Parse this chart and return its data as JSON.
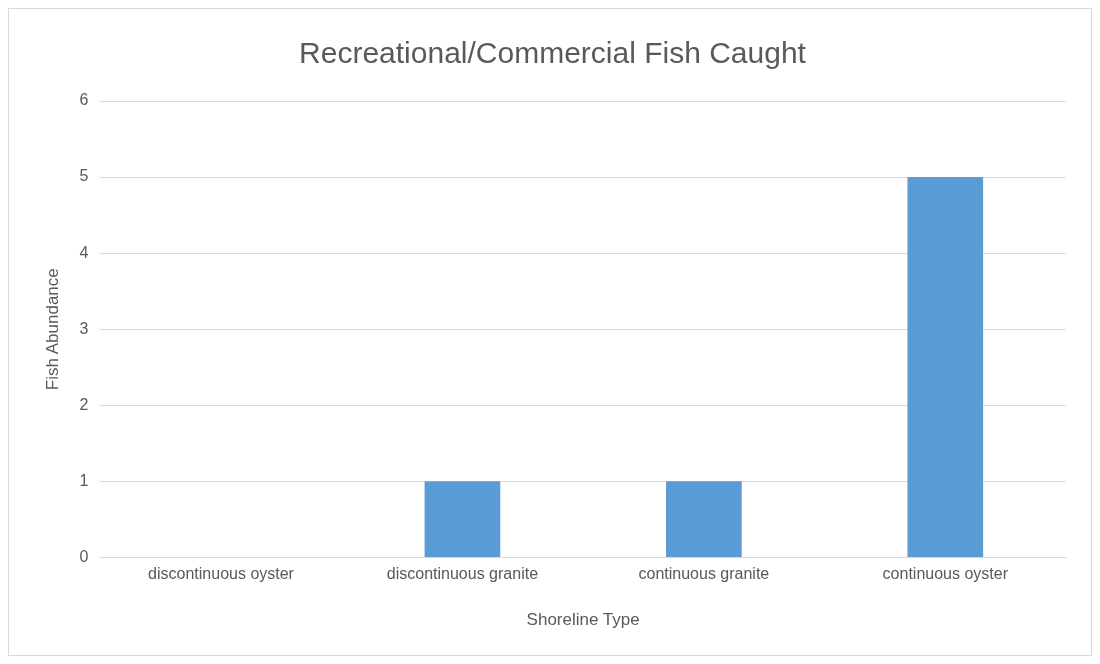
{
  "chart_data": {
    "type": "bar",
    "title": "Recreational/Commercial Fish Caught",
    "xlabel": "Shoreline Type",
    "ylabel": "Fish Abundance",
    "categories": [
      "discontinuous oyster",
      "discontinuous granite",
      "continuous granite",
      "continuous oyster"
    ],
    "values": [
      0,
      1,
      1,
      5
    ],
    "color": "#5b9bd5",
    "ylim": [
      0,
      6
    ],
    "yticks": [
      0,
      1,
      2,
      3,
      4,
      5,
      6
    ],
    "grid": "y",
    "legend": false
  }
}
